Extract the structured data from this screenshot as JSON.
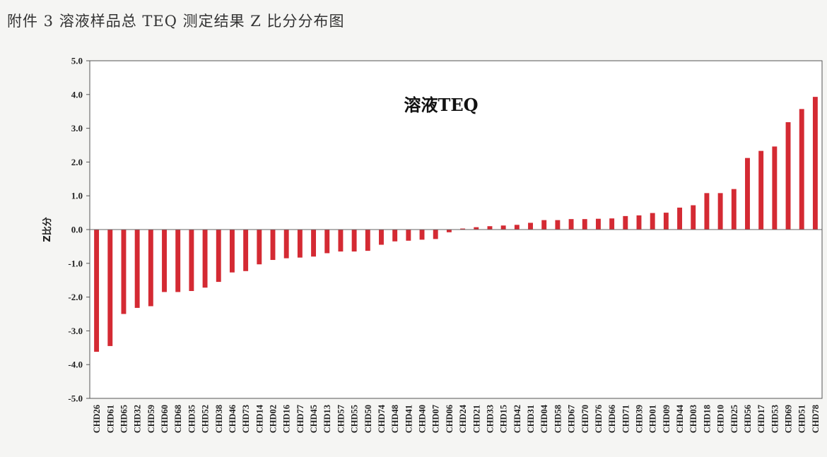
{
  "caption": "附件 3  溶液样品总 TEQ 测定结果 Z 比分分布图",
  "chart_data": {
    "type": "bar",
    "title": "溶液TEQ",
    "xlabel": "",
    "ylabel": "Z比分",
    "ylim": [
      -5.0,
      5.0
    ],
    "yticks": [
      "5.0",
      "4.0",
      "3.0",
      "2.0",
      "1.0",
      "0.0",
      "-1.0",
      "-2.0",
      "-3.0",
      "-4.0",
      "-5.0"
    ],
    "bar_color": "#d42a33",
    "grid": false,
    "categories": [
      "CHD26",
      "CHD61",
      "CHD65",
      "CHD32",
      "CHD59",
      "CHD60",
      "CHD68",
      "CHD35",
      "CHD52",
      "CHD38",
      "CHD46",
      "CHD73",
      "CHD14",
      "CHD02",
      "CHD16",
      "CHD77",
      "CHD45",
      "CHD13",
      "CHD57",
      "CHD55",
      "CHD50",
      "CHD74",
      "CHD48",
      "CHD41",
      "CHD40",
      "CHD07",
      "CHD06",
      "CHD24",
      "CHD21",
      "CHD33",
      "CHD15",
      "CHD42",
      "CHD31",
      "CHD04",
      "CHD58",
      "CHD67",
      "CHD70",
      "CHD76",
      "CHD66",
      "CHD71",
      "CHD39",
      "CHD01",
      "CHD09",
      "CHD44",
      "CHD03",
      "CHD18",
      "CHD10",
      "CHD25",
      "CHD56",
      "CHD17",
      "CHD53",
      "CHD69",
      "CHD51",
      "CHD78"
    ],
    "values": [
      -3.62,
      -3.45,
      -2.5,
      -2.32,
      -2.27,
      -1.85,
      -1.85,
      -1.82,
      -1.72,
      -1.55,
      -1.27,
      -1.23,
      -1.03,
      -0.9,
      -0.85,
      -0.83,
      -0.8,
      -0.7,
      -0.65,
      -0.65,
      -0.63,
      -0.45,
      -0.35,
      -0.33,
      -0.3,
      -0.28,
      -0.08,
      0.03,
      0.07,
      0.1,
      0.12,
      0.14,
      0.2,
      0.28,
      0.28,
      0.31,
      0.31,
      0.32,
      0.33,
      0.4,
      0.42,
      0.49,
      0.5,
      0.65,
      0.72,
      1.08,
      1.08,
      1.2,
      2.12,
      2.33,
      2.46,
      3.18,
      3.57,
      3.93
    ]
  }
}
